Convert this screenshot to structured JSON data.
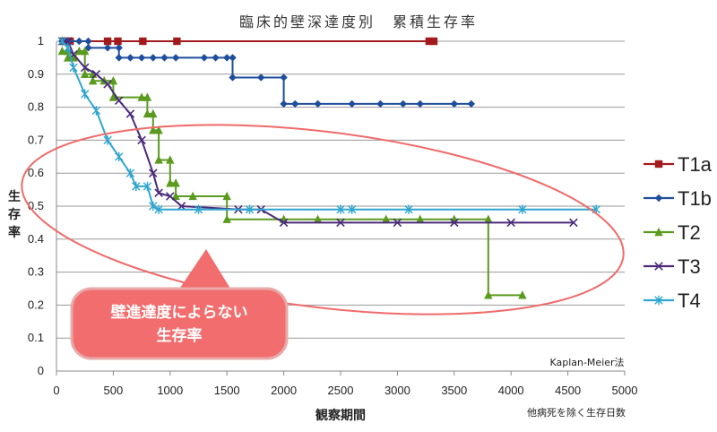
{
  "chart_data": {
    "type": "line",
    "title": "臨床的壁深達度別　累積生存率",
    "xlabel": "観察期間",
    "xlabel_note": "他病死を除く生存日数",
    "ylabel": "生存率",
    "method_note": "Kaplan-Meier法",
    "callout": [
      "壁進達度によらない",
      "生存率"
    ],
    "xlim": [
      0,
      5000
    ],
    "ylim": [
      0,
      1
    ],
    "x_ticks": [
      "0",
      "500",
      "1000",
      "1500",
      "2000",
      "2500",
      "3000",
      "3500",
      "4000",
      "4500",
      "5000"
    ],
    "y_ticks": [
      "0",
      "0.1",
      "0.2",
      "0.3",
      "0.4",
      "0.5",
      "0.6",
      "0.7",
      "0.8",
      "0.9",
      "1"
    ],
    "x_tick_values": [
      0,
      500,
      1000,
      1500,
      2000,
      2500,
      3000,
      3500,
      4000,
      4500,
      5000
    ],
    "y_tick_values": [
      0,
      0.1,
      0.2,
      0.3,
      0.4,
      0.5,
      0.6,
      0.7,
      0.8,
      0.9,
      1
    ],
    "grid": "horizontal",
    "legend": "right",
    "colors": {
      "T1a": "#a31a1c",
      "T1b": "#1f4e9c",
      "T2": "#5a9a1e",
      "T3": "#4b2a7a",
      "T4": "#2fa6cf",
      "ellipse": "#f06a6a",
      "callout_fill": "#f26d6d"
    },
    "series": [
      {
        "name": "T1a",
        "marker": "square",
        "points": [
          [
            60,
            1
          ],
          [
            100,
            1
          ],
          [
            120,
            1
          ],
          [
            450,
            1
          ],
          [
            540,
            1
          ],
          [
            760,
            1
          ],
          [
            1060,
            1
          ],
          [
            3280,
            1
          ],
          [
            3320,
            1
          ]
        ]
      },
      {
        "name": "T1b",
        "marker": "diamond",
        "points": [
          [
            50,
            1
          ],
          [
            100,
            1
          ],
          [
            200,
            1
          ],
          [
            280,
            1
          ],
          [
            280,
            0.98
          ],
          [
            450,
            0.98
          ],
          [
            550,
            0.98
          ],
          [
            550,
            0.95
          ],
          [
            650,
            0.95
          ],
          [
            750,
            0.95
          ],
          [
            850,
            0.95
          ],
          [
            950,
            0.95
          ],
          [
            1050,
            0.95
          ],
          [
            1300,
            0.95
          ],
          [
            1400,
            0.95
          ],
          [
            1500,
            0.95
          ],
          [
            1550,
            0.95
          ],
          [
            1550,
            0.89
          ],
          [
            1800,
            0.89
          ],
          [
            2000,
            0.89
          ],
          [
            2000,
            0.81
          ],
          [
            2100,
            0.81
          ],
          [
            2300,
            0.81
          ],
          [
            2600,
            0.81
          ],
          [
            2850,
            0.81
          ],
          [
            3050,
            0.81
          ],
          [
            3200,
            0.81
          ],
          [
            3500,
            0.81
          ],
          [
            3650,
            0.81
          ]
        ]
      },
      {
        "name": "T2",
        "marker": "triangle",
        "points": [
          [
            50,
            0.97
          ],
          [
            100,
            0.97
          ],
          [
            100,
            0.95
          ],
          [
            150,
            0.95
          ],
          [
            200,
            0.97
          ],
          [
            250,
            0.97
          ],
          [
            250,
            0.9
          ],
          [
            320,
            0.9
          ],
          [
            320,
            0.88
          ],
          [
            420,
            0.88
          ],
          [
            500,
            0.88
          ],
          [
            500,
            0.83
          ],
          [
            750,
            0.83
          ],
          [
            800,
            0.83
          ],
          [
            800,
            0.78
          ],
          [
            850,
            0.78
          ],
          [
            850,
            0.73
          ],
          [
            900,
            0.73
          ],
          [
            900,
            0.64
          ],
          [
            1000,
            0.64
          ],
          [
            1000,
            0.57
          ],
          [
            1050,
            0.57
          ],
          [
            1050,
            0.53
          ],
          [
            1200,
            0.53
          ],
          [
            1500,
            0.53
          ],
          [
            1500,
            0.46
          ],
          [
            2000,
            0.46
          ],
          [
            2300,
            0.46
          ],
          [
            2900,
            0.46
          ],
          [
            3200,
            0.46
          ],
          [
            3500,
            0.46
          ],
          [
            3800,
            0.46
          ],
          [
            3800,
            0.23
          ],
          [
            4100,
            0.23
          ]
        ]
      },
      {
        "name": "T3",
        "marker": "x",
        "points": [
          [
            50,
            1
          ],
          [
            100,
            1
          ],
          [
            150,
            0.96
          ],
          [
            250,
            0.92
          ],
          [
            350,
            0.9
          ],
          [
            450,
            0.87
          ],
          [
            550,
            0.82
          ],
          [
            650,
            0.78
          ],
          [
            750,
            0.7
          ],
          [
            850,
            0.6
          ],
          [
            900,
            0.54
          ],
          [
            1000,
            0.53
          ],
          [
            1100,
            0.5
          ],
          [
            1600,
            0.49
          ],
          [
            1800,
            0.49
          ],
          [
            2000,
            0.45
          ],
          [
            2500,
            0.45
          ],
          [
            3000,
            0.45
          ],
          [
            3500,
            0.45
          ],
          [
            4000,
            0.45
          ],
          [
            4550,
            0.45
          ]
        ]
      },
      {
        "name": "T4",
        "marker": "star",
        "points": [
          [
            50,
            1
          ],
          [
            100,
            0.98
          ],
          [
            150,
            0.92
          ],
          [
            250,
            0.84
          ],
          [
            350,
            0.79
          ],
          [
            450,
            0.7
          ],
          [
            550,
            0.65
          ],
          [
            650,
            0.6
          ],
          [
            700,
            0.56
          ],
          [
            800,
            0.56
          ],
          [
            850,
            0.5
          ],
          [
            900,
            0.49
          ],
          [
            1250,
            0.49
          ],
          [
            1700,
            0.49
          ],
          [
            2500,
            0.49
          ],
          [
            2600,
            0.49
          ],
          [
            3100,
            0.49
          ],
          [
            4100,
            0.49
          ],
          [
            4750,
            0.49
          ]
        ]
      }
    ]
  }
}
